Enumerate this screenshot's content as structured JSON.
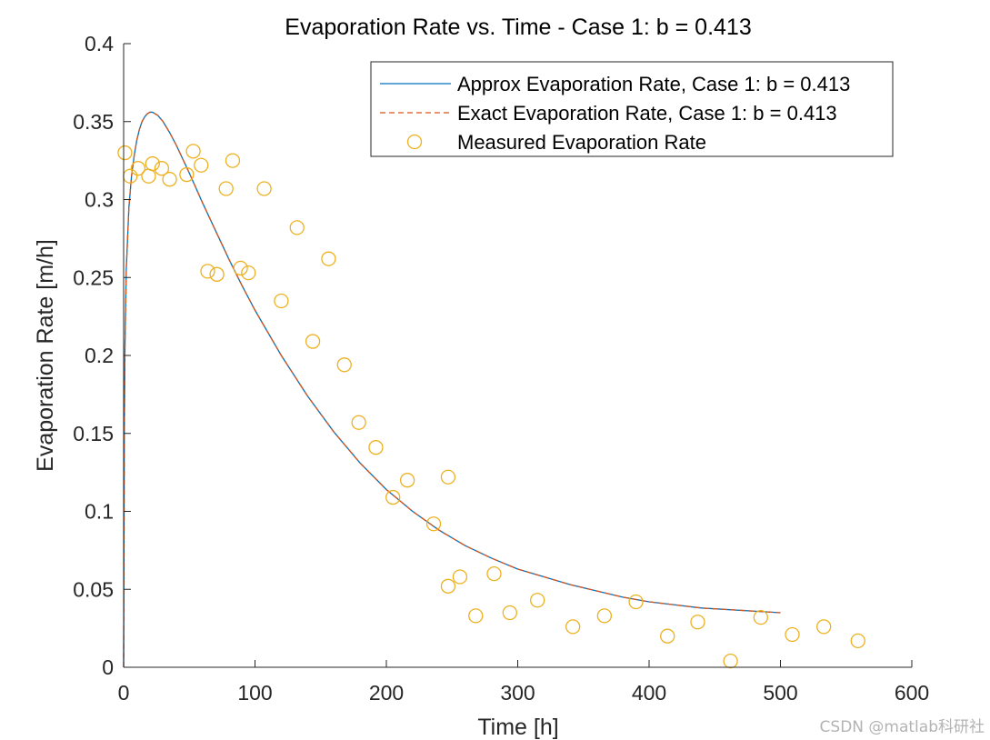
{
  "chart_data": {
    "type": "line",
    "title": "Evaporation Rate vs. Time - Case 1: b = 0.413",
    "xlabel": "Time [h]",
    "ylabel": "Evaporation Rate [m/h]",
    "xlim": [
      0,
      600
    ],
    "ylim": [
      0,
      0.4
    ],
    "xticks": [
      0,
      100,
      200,
      300,
      400,
      500,
      600
    ],
    "yticks": [
      0,
      0.05,
      0.1,
      0.15,
      0.2,
      0.25,
      0.3,
      0.35,
      0.4
    ],
    "xtick_labels": [
      "0",
      "100",
      "200",
      "300",
      "400",
      "500",
      "600"
    ],
    "ytick_labels": [
      "0",
      "0.05",
      "0.1",
      "0.15",
      "0.2",
      "0.25",
      "0.3",
      "0.35",
      "0.4"
    ],
    "grid": false,
    "legend_position": "top-right",
    "series": [
      {
        "name": "Approx Evaporation Rate, Case 1: b = 0.413",
        "style": "solid",
        "color": "#0072BD",
        "x": [
          0,
          0.5,
          1,
          2,
          4,
          6,
          8,
          10,
          12,
          14,
          16,
          18,
          20,
          22,
          24,
          26,
          28,
          30,
          35,
          40,
          50,
          60,
          70,
          80,
          90,
          100,
          120,
          140,
          160,
          180,
          200,
          220,
          240,
          260,
          280,
          300,
          320,
          340,
          360,
          380,
          400,
          420,
          440,
          460,
          480,
          500
        ],
        "y": [
          0,
          0.15,
          0.205,
          0.255,
          0.295,
          0.315,
          0.328,
          0.338,
          0.345,
          0.35,
          0.353,
          0.355,
          0.356,
          0.356,
          0.355,
          0.354,
          0.352,
          0.35,
          0.343,
          0.335,
          0.317,
          0.298,
          0.28,
          0.262,
          0.245,
          0.229,
          0.2,
          0.174,
          0.151,
          0.131,
          0.114,
          0.1,
          0.088,
          0.078,
          0.07,
          0.063,
          0.058,
          0.053,
          0.049,
          0.045,
          0.042,
          0.04,
          0.038,
          0.037,
          0.036,
          0.035
        ]
      },
      {
        "name": "Exact Evaporation Rate, Case 1: b = 0.413",
        "style": "dashed",
        "color": "#D95319",
        "x": [
          0,
          0.5,
          1,
          2,
          4,
          6,
          8,
          10,
          12,
          14,
          16,
          18,
          20,
          22,
          24,
          26,
          28,
          30,
          35,
          40,
          50,
          60,
          70,
          80,
          90,
          100,
          120,
          140,
          160,
          180,
          200,
          220,
          240,
          260,
          280,
          300,
          320,
          340,
          360,
          380,
          400,
          420,
          440,
          460,
          480,
          500
        ],
        "y": [
          0,
          0.15,
          0.205,
          0.255,
          0.295,
          0.315,
          0.328,
          0.338,
          0.345,
          0.35,
          0.353,
          0.355,
          0.356,
          0.356,
          0.355,
          0.354,
          0.352,
          0.35,
          0.343,
          0.335,
          0.317,
          0.298,
          0.28,
          0.262,
          0.245,
          0.229,
          0.2,
          0.174,
          0.151,
          0.131,
          0.114,
          0.1,
          0.088,
          0.078,
          0.07,
          0.063,
          0.058,
          0.053,
          0.049,
          0.045,
          0.042,
          0.04,
          0.038,
          0.037,
          0.036,
          0.035
        ]
      },
      {
        "name": "Measured Evaporation Rate",
        "style": "markers",
        "marker": "circle",
        "color": "#EDB120",
        "x": [
          1,
          5,
          11,
          19,
          22,
          29,
          35,
          48,
          53,
          59,
          64,
          71,
          78,
          83,
          89,
          95,
          107,
          120,
          132,
          144,
          156,
          168,
          179,
          192,
          205,
          216,
          236,
          247,
          247,
          256,
          268,
          282,
          294,
          315,
          342,
          366,
          390,
          414,
          437,
          462,
          485,
          509,
          533,
          559
        ],
        "y": [
          0.33,
          0.315,
          0.32,
          0.315,
          0.323,
          0.32,
          0.313,
          0.316,
          0.331,
          0.322,
          0.254,
          0.252,
          0.307,
          0.325,
          0.256,
          0.253,
          0.307,
          0.235,
          0.282,
          0.209,
          0.262,
          0.194,
          0.157,
          0.141,
          0.109,
          0.12,
          0.092,
          0.122,
          0.052,
          0.058,
          0.033,
          0.06,
          0.035,
          0.043,
          0.026,
          0.033,
          0.042,
          0.02,
          0.029,
          0.004,
          0.032,
          0.021,
          0.026,
          0.017
        ]
      }
    ]
  },
  "watermark": "CSDN @matlab科研社"
}
